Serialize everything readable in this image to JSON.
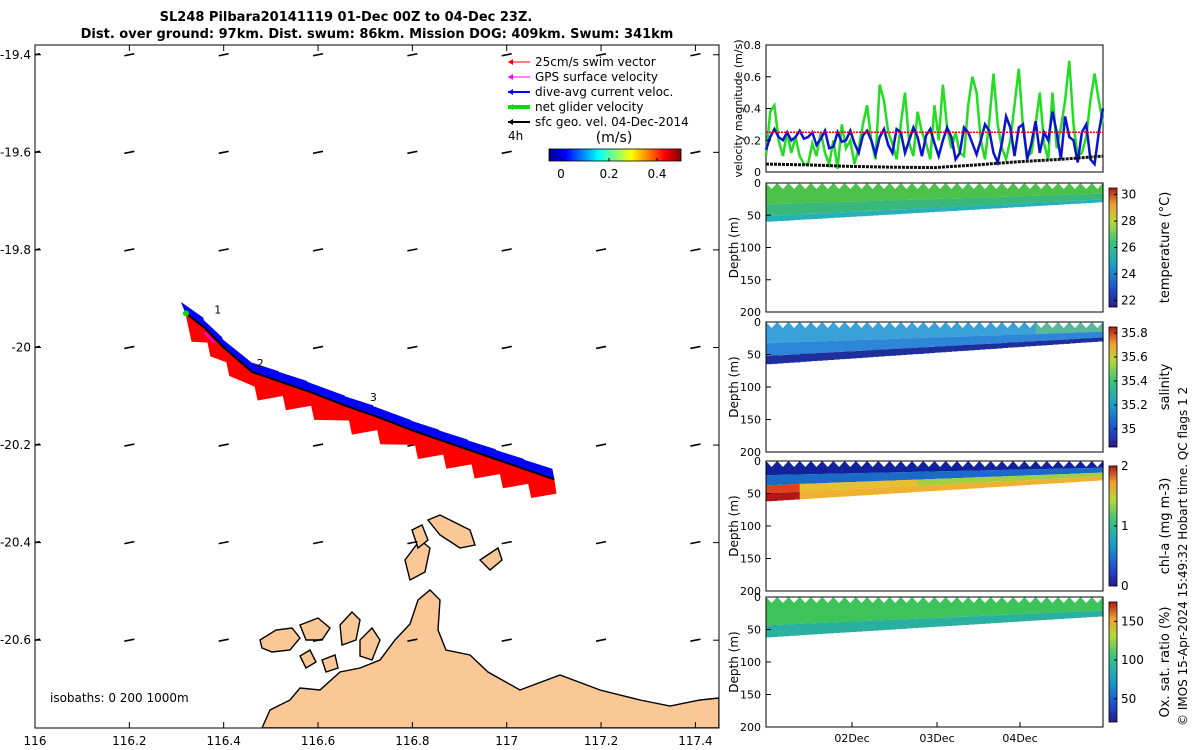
{
  "title": {
    "line1": "SL248 Pilbara20141119 01-Dec 00Z to 04-Dec 23Z.",
    "line2": "Dist. over ground: 97km. Dist. swum: 86km. Mission DOG: 409km. Swum: 341km"
  },
  "watermark": "© IMOS 15-Apr-2024 15:49:32 Hobart time. QC flags 1  2",
  "colors": {
    "swim": "#ff0000",
    "gps": "#ff00ff",
    "current": "#0000ff",
    "net": "#00dd00",
    "sfc": "#000000",
    "land": "#f9c896"
  },
  "chart_data": [
    {
      "type": "map",
      "title": "SL248 Pilbara20141119 01-Dec 00Z to 04-Dec 23Z.",
      "xlim": [
        116,
        117.45
      ],
      "ylim": [
        -20.78,
        -19.38
      ],
      "x_ticks": [
        "116",
        "116.2",
        "116.4",
        "116.6",
        "116.8",
        "117",
        "117.2",
        "117.4"
      ],
      "y_ticks": [
        "-19.4",
        "-19.6",
        "-19.8",
        "-20",
        "-20.2",
        "-20.4",
        "-20.6"
      ],
      "legend": {
        "placement": "top-right",
        "entries": [
          "25cm/s swim vector",
          "GPS surface velocity",
          "dive-avg current veloc.",
          "net glider velocity",
          "sfc geo. vel. 04-Dec-2014"
        ],
        "tag": "4h"
      },
      "colorbar": {
        "label": "(m/s)",
        "ticks": [
          "0",
          "0.2",
          "0.4"
        ],
        "range": [
          -0.05,
          0.5
        ]
      },
      "track": {
        "lon": [
          116.32,
          116.36,
          116.4,
          116.46,
          116.52,
          116.58,
          116.66,
          116.72,
          116.8,
          116.86,
          116.92,
          116.98,
          117.04,
          117.1
        ],
        "lat": [
          -19.93,
          -19.96,
          -20.0,
          -20.05,
          -20.07,
          -20.09,
          -20.12,
          -20.14,
          -20.17,
          -20.19,
          -20.21,
          -20.23,
          -20.25,
          -20.27
        ]
      },
      "track_labels": [
        "1",
        "2",
        "3"
      ],
      "isobaths_note": "isobaths: 0   200  1000m"
    },
    {
      "type": "line",
      "ylabel": "velocity magnitude (m/s)",
      "ylim": [
        0,
        0.8
      ],
      "y_ticks": [
        "0",
        "0.2",
        "0.4",
        "0.6",
        "0.8"
      ],
      "x_range_days": [
        1,
        5
      ],
      "series": [
        {
          "color": "green",
          "x": [
            1.0,
            1.05,
            1.1,
            1.15,
            1.2,
            1.25,
            1.3,
            1.35,
            1.4,
            1.45,
            1.5,
            1.55,
            1.6,
            1.65,
            1.7,
            1.75,
            1.8,
            1.85,
            1.9,
            1.95,
            2.0,
            2.05,
            2.1,
            2.15,
            2.2,
            2.25,
            2.3,
            2.35,
            2.4,
            2.45,
            2.5,
            2.55,
            2.6,
            2.65,
            2.7,
            2.75,
            2.8,
            2.85,
            2.9,
            2.95,
            3.0,
            3.05,
            3.1,
            3.15,
            3.2,
            3.25,
            3.3,
            3.35,
            3.4,
            3.45,
            3.5,
            3.55,
            3.6,
            3.65,
            3.7,
            3.75,
            3.8,
            3.85,
            3.9,
            3.95,
            4.0,
            4.05,
            4.1,
            4.15,
            4.2,
            4.25,
            4.3,
            4.35,
            4.4,
            4.45,
            4.5,
            4.55,
            4.6,
            4.65,
            4.7,
            4.75,
            4.8,
            4.85,
            4.9,
            4.95,
            5.0
          ],
          "values": [
            0.1,
            0.38,
            0.42,
            0.2,
            0.1,
            0.25,
            0.12,
            0.22,
            0.1,
            0.05,
            0.05,
            0.18,
            0.1,
            0.25,
            0.12,
            0.05,
            0.2,
            0.02,
            0.3,
            0.15,
            0.2,
            0.05,
            0.15,
            0.3,
            0.42,
            0.2,
            0.08,
            0.55,
            0.45,
            0.25,
            0.18,
            0.08,
            0.3,
            0.5,
            0.18,
            0.1,
            0.38,
            0.25,
            0.18,
            0.08,
            0.42,
            0.2,
            0.55,
            0.28,
            0.15,
            0.25,
            0.12,
            0.1,
            0.42,
            0.6,
            0.5,
            0.2,
            0.08,
            0.32,
            0.62,
            0.3,
            0.15,
            0.08,
            0.2,
            0.42,
            0.65,
            0.28,
            0.1,
            0.12,
            0.3,
            0.5,
            0.18,
            0.08,
            0.5,
            0.15,
            0.28,
            0.45,
            0.7,
            0.3,
            0.1,
            0.12,
            0.22,
            0.45,
            0.62,
            0.45,
            0.3
          ]
        },
        {
          "color": "blue",
          "x": [
            1.0,
            1.05,
            1.1,
            1.15,
            1.2,
            1.25,
            1.3,
            1.35,
            1.4,
            1.45,
            1.5,
            1.55,
            1.6,
            1.65,
            1.7,
            1.75,
            1.8,
            1.85,
            1.9,
            1.95,
            2.0,
            2.05,
            2.1,
            2.15,
            2.2,
            2.25,
            2.3,
            2.35,
            2.4,
            2.45,
            2.5,
            2.55,
            2.6,
            2.65,
            2.7,
            2.75,
            2.8,
            2.85,
            2.9,
            2.95,
            3.0,
            3.05,
            3.1,
            3.15,
            3.2,
            3.25,
            3.3,
            3.35,
            3.4,
            3.45,
            3.5,
            3.55,
            3.6,
            3.65,
            3.7,
            3.75,
            3.8,
            3.85,
            3.9,
            3.95,
            4.0,
            4.05,
            4.1,
            4.15,
            4.2,
            4.25,
            4.3,
            4.35,
            4.4,
            4.45,
            4.5,
            4.55,
            4.6,
            4.65,
            4.7,
            4.75,
            4.8,
            4.85,
            4.9,
            4.95,
            5.0
          ],
          "values": [
            0.14,
            0.22,
            0.27,
            0.22,
            0.2,
            0.25,
            0.2,
            0.22,
            0.26,
            0.21,
            0.22,
            0.25,
            0.17,
            0.21,
            0.26,
            0.15,
            0.16,
            0.25,
            0.19,
            0.2,
            0.26,
            0.18,
            0.12,
            0.23,
            0.26,
            0.2,
            0.11,
            0.22,
            0.27,
            0.17,
            0.12,
            0.27,
            0.25,
            0.12,
            0.2,
            0.28,
            0.22,
            0.1,
            0.23,
            0.27,
            0.18,
            0.1,
            0.2,
            0.28,
            0.22,
            0.08,
            0.12,
            0.28,
            0.25,
            0.18,
            0.11,
            0.2,
            0.3,
            0.26,
            0.12,
            0.06,
            0.18,
            0.35,
            0.28,
            0.1,
            0.28,
            0.3,
            0.08,
            0.18,
            0.32,
            0.12,
            0.25,
            0.2,
            0.38,
            0.25,
            0.08,
            0.35,
            0.22,
            0.2,
            0.06,
            0.25,
            0.3,
            0.08,
            0.05,
            0.25,
            0.4
          ]
        },
        {
          "color": "red",
          "x": [
            1.0,
            5.0
          ],
          "values": [
            0.25,
            0.25
          ]
        },
        {
          "color": "black",
          "x": [
            1.0,
            1.5,
            2.0,
            2.5,
            3.0,
            3.5,
            4.0,
            4.5,
            5.0
          ],
          "values": [
            0.05,
            0.045,
            0.035,
            0.03,
            0.028,
            0.045,
            0.065,
            0.08,
            0.1
          ]
        }
      ]
    },
    {
      "type": "heatmap",
      "ylabel": "Depth (m)",
      "colorbar_label": "temperature (°C)",
      "colorbar_ticks": [
        "22",
        "24",
        "26",
        "28",
        "30"
      ],
      "colorbar_range": [
        21.5,
        30.5
      ],
      "y_ticks": [
        "0",
        "50",
        "100",
        "150",
        "200"
      ],
      "bottom_depth_start": 60,
      "bottom_depth_end": 30
    },
    {
      "type": "heatmap",
      "ylabel": "Depth (m)",
      "colorbar_label": "salinity",
      "colorbar_ticks": [
        "35",
        "35.2",
        "35.4",
        "35.6",
        "35.8"
      ],
      "colorbar_range": [
        34.85,
        35.85
      ],
      "y_ticks": [
        "0",
        "50",
        "100",
        "150",
        "200"
      ],
      "bottom_depth_start": 65,
      "bottom_depth_end": 30
    },
    {
      "type": "heatmap",
      "ylabel": "Depth (m)",
      "colorbar_label": "chl-a (mg m-3)",
      "colorbar_ticks": [
        "0",
        "1",
        "2"
      ],
      "colorbar_range": [
        0,
        2
      ],
      "y_ticks": [
        "0",
        "50",
        "100",
        "150",
        "200"
      ],
      "bottom_depth_start": 62,
      "bottom_depth_end": 30
    },
    {
      "type": "heatmap",
      "ylabel": "Depth (m)",
      "colorbar_label": "Ox. sat. ratio (%)",
      "colorbar_ticks": [
        "50",
        "100",
        "150"
      ],
      "colorbar_range": [
        20,
        175
      ],
      "y_ticks": [
        "0",
        "50",
        "100",
        "150",
        "200"
      ],
      "x_ticks": [
        "02Dec",
        "03Dec",
        "04Dec"
      ],
      "bottom_depth_start": 62,
      "bottom_depth_end": 30
    }
  ]
}
